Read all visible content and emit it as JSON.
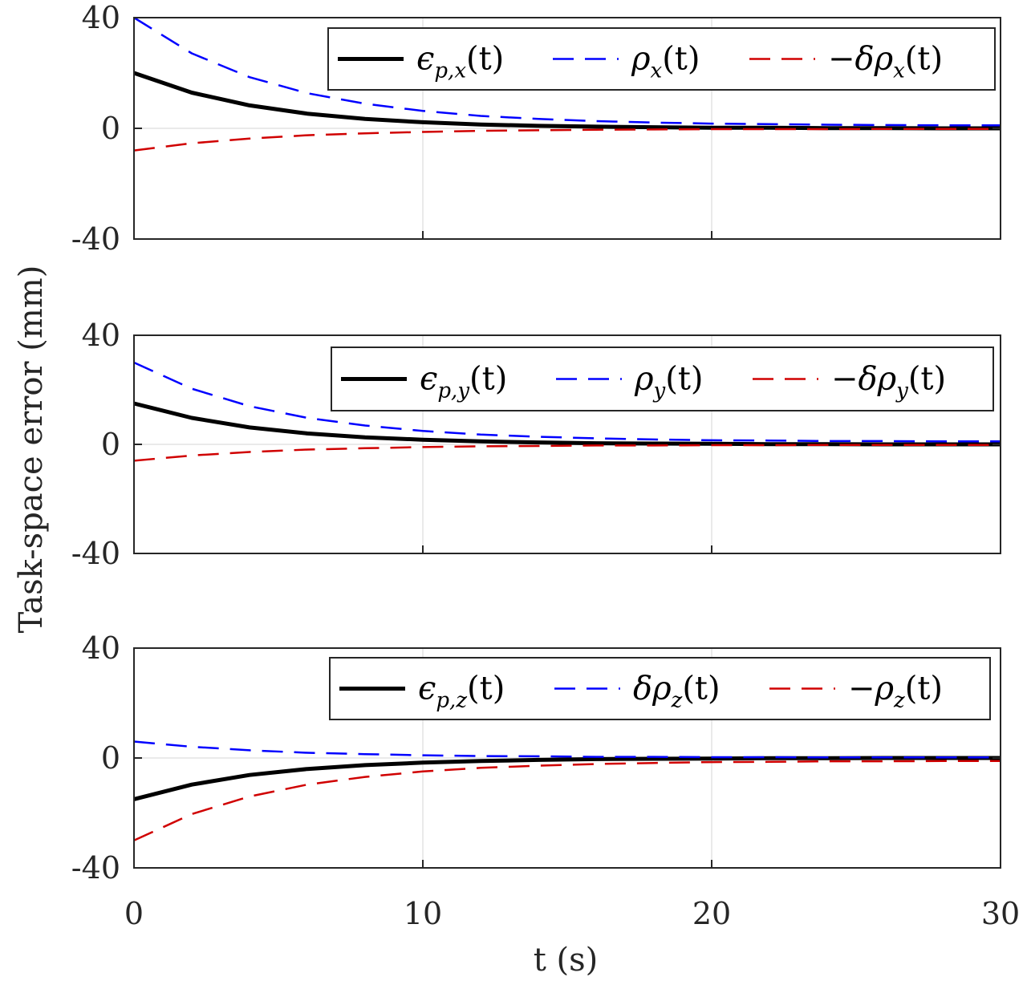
{
  "chart_data": [
    {
      "type": "line",
      "title": "",
      "xlabel": "t (s)",
      "ylabel": "Task-space error (mm)",
      "xlim": [
        0,
        30
      ],
      "ylim": [
        -40,
        40
      ],
      "xticks": [
        "0",
        "10",
        "20",
        "30"
      ],
      "yticks": [
        "40",
        "0",
        "-40"
      ],
      "grid": true,
      "legend_placement": "top-right",
      "x": [
        0,
        2,
        4,
        6,
        8,
        10,
        12,
        14,
        16,
        18,
        20,
        22,
        24,
        26,
        28,
        30
      ],
      "series": [
        {
          "name": "ϵp,x(t)",
          "sym": "ϵ",
          "sub": "p,x",
          "arg": "(t)",
          "color": "#000000",
          "style": "solid",
          "values": [
            20,
            12.9,
            8.3,
            5.3,
            3.4,
            2.2,
            1.4,
            0.9,
            0.6,
            0.4,
            0.2,
            0.2,
            0.1,
            0.1,
            0,
            0
          ]
        },
        {
          "name": "ρx(t)",
          "sym": "ρ",
          "sub": "x",
          "arg": "(t)",
          "color": "#0000ff",
          "style": "dashed",
          "values": [
            40,
            27.1,
            18.5,
            12.7,
            8.9,
            6.3,
            4.5,
            3.4,
            2.6,
            2.1,
            1.7,
            1.5,
            1.3,
            1.2,
            1.1,
            1.1
          ]
        },
        {
          "name": "−δρx(t)",
          "sym": "−δρ",
          "sub": "x",
          "arg": "(t)",
          "color": "#d00000",
          "style": "dashed",
          "values": [
            -8,
            -5.4,
            -3.7,
            -2.5,
            -1.8,
            -1.3,
            -0.9,
            -0.7,
            -0.5,
            -0.4,
            -0.3,
            -0.3,
            -0.3,
            -0.2,
            -0.2,
            -0.2
          ]
        }
      ]
    },
    {
      "type": "line",
      "xlim": [
        0,
        30
      ],
      "ylim": [
        -40,
        40
      ],
      "xticks": [
        "0",
        "10",
        "20",
        "30"
      ],
      "yticks": [
        "40",
        "0",
        "-40"
      ],
      "grid": true,
      "legend_placement": "top-right",
      "x": [
        0,
        2,
        4,
        6,
        8,
        10,
        12,
        14,
        16,
        18,
        20,
        22,
        24,
        26,
        28,
        30
      ],
      "series": [
        {
          "name": "ϵp,y(t)",
          "sym": "ϵ",
          "sub": "p,y",
          "arg": "(t)",
          "color": "#000000",
          "style": "solid",
          "values": [
            15,
            9.7,
            6.2,
            4.0,
            2.6,
            1.7,
            1.1,
            0.7,
            0.4,
            0.3,
            0.2,
            0.1,
            0.1,
            0,
            0,
            0
          ]
        },
        {
          "name": "ρy(t)",
          "sym": "ρ",
          "sub": "y",
          "arg": "(t)",
          "color": "#0000ff",
          "style": "dashed",
          "values": [
            30,
            20.4,
            14.0,
            9.7,
            6.9,
            4.9,
            3.6,
            2.8,
            2.2,
            1.8,
            1.5,
            1.4,
            1.2,
            1.2,
            1.1,
            1.1
          ]
        },
        {
          "name": "−δρy(t)",
          "sym": "−δρ",
          "sub": "y",
          "arg": "(t)",
          "color": "#d00000",
          "style": "dashed",
          "values": [
            -6,
            -4.1,
            -2.8,
            -1.9,
            -1.4,
            -1.0,
            -0.7,
            -0.6,
            -0.4,
            -0.4,
            -0.3,
            -0.3,
            -0.2,
            -0.2,
            -0.2,
            -0.2
          ]
        }
      ]
    },
    {
      "type": "line",
      "xlim": [
        0,
        30
      ],
      "ylim": [
        -40,
        40
      ],
      "xticks": [
        "0",
        "10",
        "20",
        "30"
      ],
      "yticks": [
        "40",
        "0",
        "-40"
      ],
      "grid": true,
      "legend_placement": "top-right",
      "x": [
        0,
        2,
        4,
        6,
        8,
        10,
        12,
        14,
        16,
        18,
        20,
        22,
        24,
        26,
        28,
        30
      ],
      "series": [
        {
          "name": "ϵp,z(t)",
          "sym": "ϵ",
          "sub": "p,z",
          "arg": "(t)",
          "color": "#000000",
          "style": "solid",
          "values": [
            -15,
            -9.7,
            -6.2,
            -4.0,
            -2.6,
            -1.7,
            -1.1,
            -0.7,
            -0.4,
            -0.3,
            -0.2,
            -0.1,
            -0.1,
            0,
            0,
            0
          ]
        },
        {
          "name": "δρz(t)",
          "sym": "δρ",
          "sub": "z",
          "arg": "(t)",
          "color": "#0000ff",
          "style": "dashed",
          "values": [
            6,
            4.1,
            2.8,
            1.9,
            1.4,
            1.0,
            0.7,
            0.6,
            0.4,
            0.4,
            0.3,
            0.3,
            0.2,
            0.2,
            0.2,
            0.2
          ]
        },
        {
          "name": "−ρz(t)",
          "sym": "−ρ",
          "sub": "z",
          "arg": "(t)",
          "color": "#d00000",
          "style": "dashed",
          "values": [
            -30,
            -20.4,
            -14.0,
            -9.7,
            -6.9,
            -4.9,
            -3.6,
            -2.8,
            -2.2,
            -1.8,
            -1.5,
            -1.4,
            -1.2,
            -1.2,
            -1.1,
            -1.1
          ]
        }
      ]
    }
  ]
}
